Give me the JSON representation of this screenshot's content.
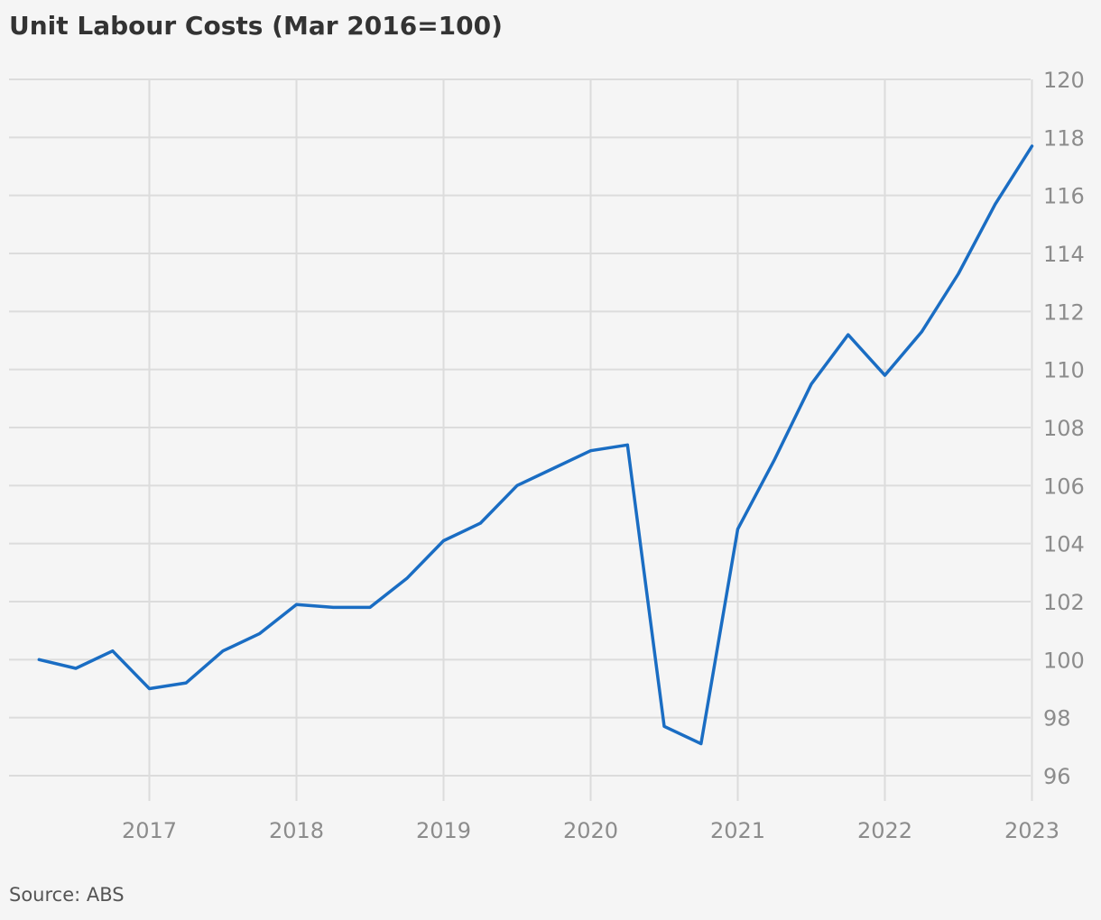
{
  "chart_data": {
    "type": "line",
    "title": "Unit Labour Costs (Mar 2016=100)",
    "source": "Source: ABS",
    "xlabel": "",
    "ylabel": "",
    "x_ticks": [
      "2017",
      "2018",
      "2019",
      "2020",
      "2021",
      "2022",
      "2023"
    ],
    "y_ticks": [
      "96",
      "98",
      "100",
      "102",
      "104",
      "106",
      "108",
      "110",
      "112",
      "114",
      "116",
      "118",
      "120"
    ],
    "ylim": [
      96,
      120
    ],
    "y_axis_position": "right",
    "grid": true,
    "legend": "none",
    "line_color": "#1a6dc3",
    "series": [
      {
        "x": [
          "Mar 2016",
          "Jun 2016",
          "Sep 2016",
          "Dec 2016",
          "Mar 2017",
          "Jun 2017",
          "Sep 2017",
          "Dec 2017",
          "Mar 2018",
          "Jun 2018",
          "Sep 2018",
          "Dec 2018",
          "Mar 2019",
          "Jun 2019",
          "Sep 2019",
          "Dec 2019",
          "Mar 2020",
          "Jun 2020",
          "Sep 2020",
          "Dec 2020",
          "Mar 2021",
          "Jun 2021",
          "Sep 2021",
          "Dec 2021",
          "Mar 2022",
          "Jun 2022",
          "Sep 2022",
          "Dec 2022"
        ],
        "values": [
          100.0,
          99.7,
          100.3,
          99.0,
          99.2,
          100.3,
          100.9,
          101.9,
          101.8,
          101.8,
          102.8,
          104.1,
          104.7,
          106.0,
          106.6,
          107.2,
          107.4,
          97.7,
          97.1,
          104.5,
          106.9,
          109.5,
          111.2,
          109.8,
          111.3,
          113.3,
          115.7,
          117.7
        ]
      }
    ]
  }
}
